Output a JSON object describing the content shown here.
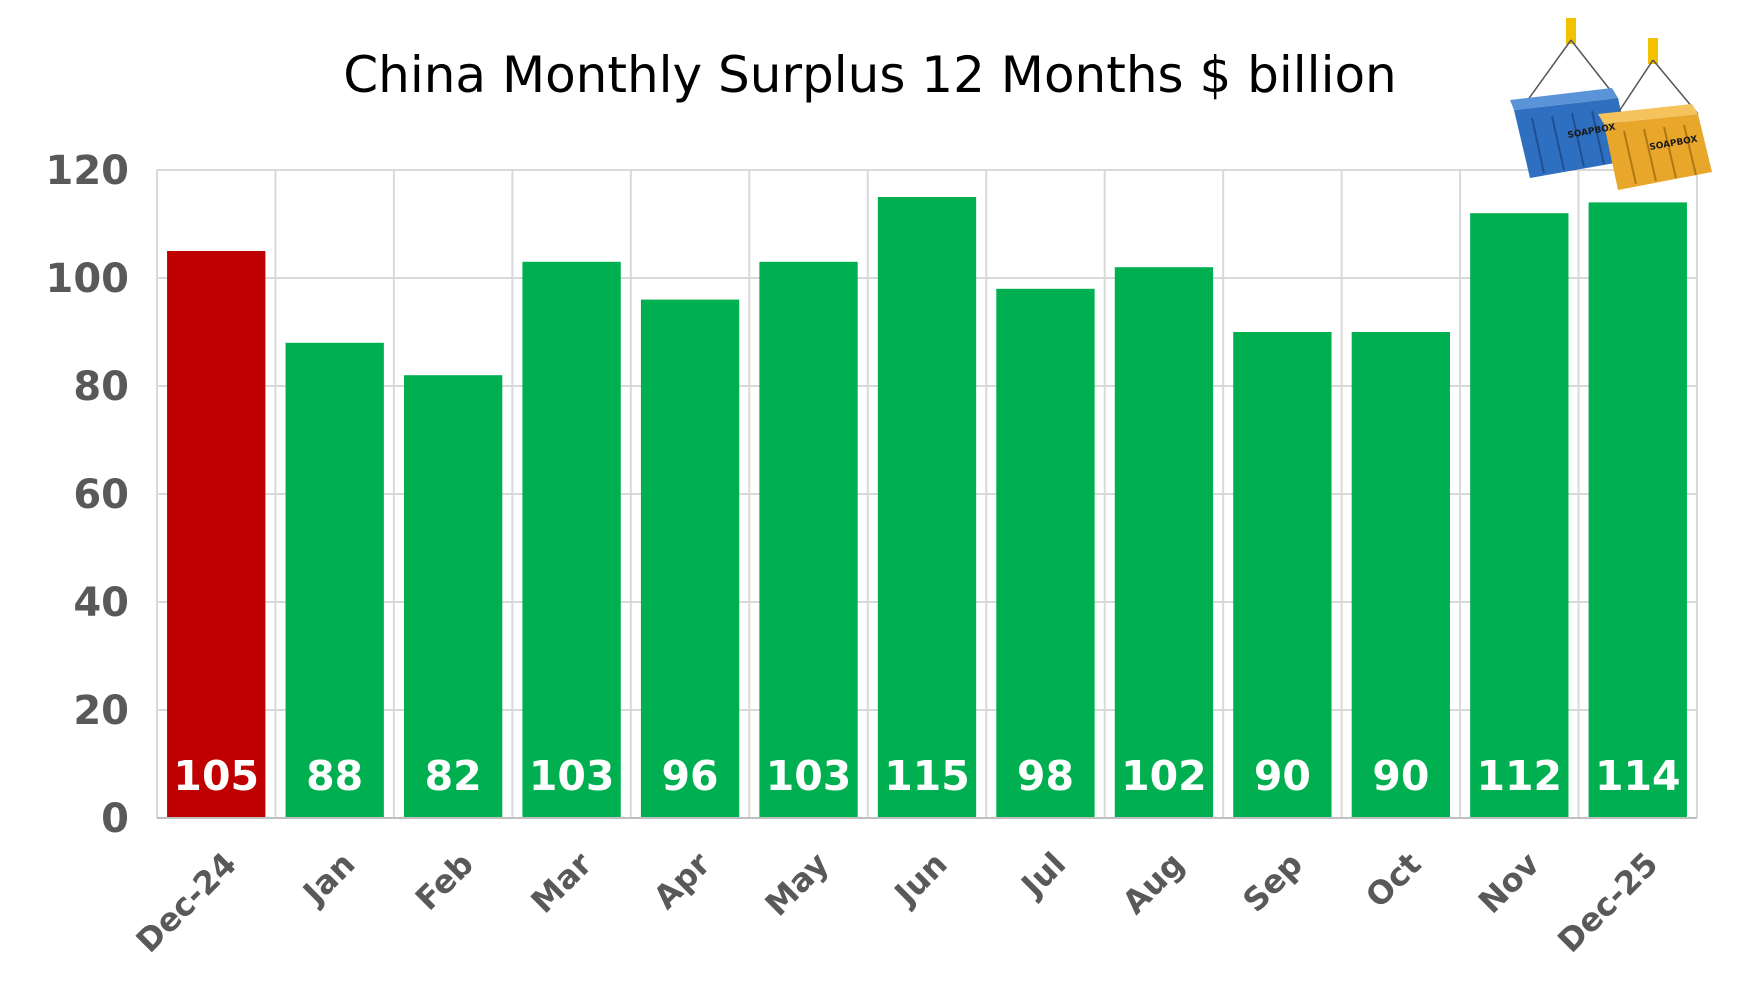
{
  "chart_data": {
    "type": "bar",
    "title": "China Monthly Surplus 12 Months $ billion",
    "xlabel": "",
    "ylabel": "",
    "categories": [
      "Dec-24",
      "Jan",
      "Feb",
      "Mar",
      "Apr",
      "May",
      "Jun",
      "Jul",
      "Aug",
      "Sep",
      "Oct",
      "Nov",
      "Dec-25"
    ],
    "values": [
      105,
      88,
      82,
      103,
      96,
      103,
      115,
      98,
      102,
      90,
      90,
      112,
      114
    ],
    "data_labels": [
      "105",
      "88",
      "82",
      "103",
      "96",
      "103",
      "115",
      "98",
      "102",
      "90",
      "90",
      "112",
      "114"
    ],
    "bar_colors": [
      "#c00000",
      "#00b050",
      "#00b050",
      "#00b050",
      "#00b050",
      "#00b050",
      "#00b050",
      "#00b050",
      "#00b050",
      "#00b050",
      "#00b050",
      "#00b050",
      "#00b050"
    ],
    "ylim": [
      0,
      120
    ],
    "yticks": [
      "0",
      "20",
      "40",
      "60",
      "80",
      "100",
      "120"
    ],
    "grid": true,
    "legend": "none"
  },
  "logo": {
    "text_left": "SOAPBOX",
    "text_right": "SOAPBOX",
    "colors": {
      "left_container": "#2f6fc0",
      "right_container": "#e8a62a",
      "hook": "#f2c200"
    }
  }
}
